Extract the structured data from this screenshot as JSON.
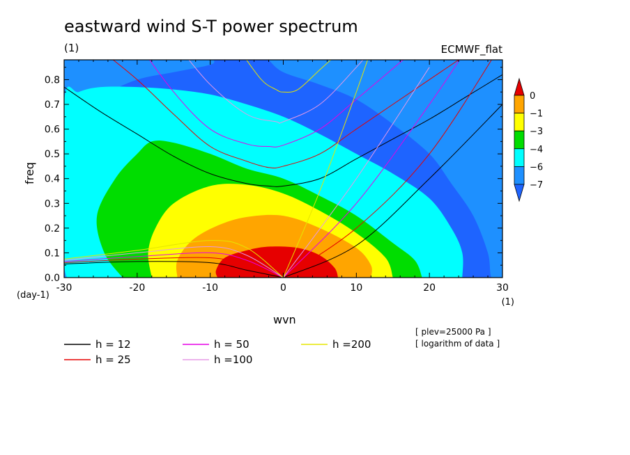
{
  "chart_data": {
    "type": "heatmap",
    "title": "eastward wind S-T power spectrum",
    "subtitle_left": "(1)",
    "subtitle_right": "ECMWF_flat",
    "xlabel": "wvn",
    "ylabel": "freq",
    "x_unit": "(1)",
    "y_unit": "(day-1)",
    "xlim": [
      -30,
      30
    ],
    "ylim": [
      0,
      0.88
    ],
    "x_ticks": [
      -30,
      -20,
      -10,
      0,
      10,
      20,
      30
    ],
    "x_tick_labels": [
      "-30",
      "-20",
      "-10",
      "0",
      "10",
      "20",
      "30"
    ],
    "y_ticks": [
      0.0,
      0.1,
      0.2,
      0.3,
      0.4,
      0.5,
      0.6,
      0.7,
      0.8
    ],
    "y_tick_labels": [
      "0.0",
      "0.1",
      "0.2",
      "0.3",
      "0.4",
      "0.5",
      "0.6",
      "0.7",
      "0.8"
    ],
    "colorbar": {
      "levels": [
        0,
        -1,
        -3,
        -4,
        -6,
        -7
      ],
      "labels": [
        "0",
        "−1",
        "−3",
        "−4",
        "−6",
        "−7"
      ],
      "colors": [
        "#e60000",
        "#ffa500",
        "#ffff00",
        "#00dd00",
        "#00ffff",
        "#1e90ff",
        "#1e64ff"
      ]
    },
    "contours": [
      {
        "level": "-1",
        "color": "#e60000",
        "points": [
          [
            -9,
            0
          ],
          [
            -9.2,
            0.03
          ],
          [
            -8,
            0.08
          ],
          [
            -5,
            0.11
          ],
          [
            -2,
            0.125
          ],
          [
            2,
            0.12
          ],
          [
            5,
            0.09
          ],
          [
            7,
            0.04
          ],
          [
            7.5,
            0
          ]
        ]
      },
      {
        "level": "-3",
        "color": "#ffa500",
        "points": [
          [
            -14.5,
            0
          ],
          [
            -14.5,
            0.07
          ],
          [
            -12.5,
            0.15
          ],
          [
            -9,
            0.21
          ],
          [
            -5,
            0.245
          ],
          [
            0,
            0.25
          ],
          [
            5,
            0.2
          ],
          [
            10,
            0.12
          ],
          [
            12,
            0.05
          ],
          [
            12,
            0
          ]
        ]
      },
      {
        "level": "-4",
        "color": "#ffff00",
        "points": [
          [
            -18,
            0
          ],
          [
            -18.5,
            0.1
          ],
          [
            -17.5,
            0.2
          ],
          [
            -15,
            0.3
          ],
          [
            -10,
            0.37
          ],
          [
            -5,
            0.375
          ],
          [
            0,
            0.34
          ],
          [
            5,
            0.27
          ],
          [
            10,
            0.18
          ],
          [
            14,
            0.08
          ],
          [
            15,
            0
          ]
        ]
      },
      {
        "level": "-6",
        "color": "#00dd00",
        "points": [
          [
            -22,
            0
          ],
          [
            -24.5,
            0.1
          ],
          [
            -25.5,
            0.25
          ],
          [
            -23,
            0.4
          ],
          [
            -20,
            0.5
          ],
          [
            -18,
            0.55
          ],
          [
            -15,
            0.545
          ],
          [
            -10,
            0.5
          ],
          [
            -5,
            0.44
          ],
          [
            0,
            0.4
          ],
          [
            5,
            0.33
          ],
          [
            10,
            0.25
          ],
          [
            15,
            0.14
          ],
          [
            18,
            0.07
          ],
          [
            19,
            0
          ]
        ]
      },
      {
        "level": "-7",
        "color": "#00ffff",
        "points": [
          [
            -27.5,
            0
          ],
          [
            -30,
            0.05
          ],
          [
            -30,
            0.71
          ],
          [
            -28,
            0.75
          ],
          [
            -25,
            0.77
          ],
          [
            -20,
            0.77
          ],
          [
            -15,
            0.76
          ],
          [
            -10,
            0.74
          ],
          [
            -5,
            0.7
          ],
          [
            0,
            0.65
          ],
          [
            5,
            0.58
          ],
          [
            10,
            0.5
          ],
          [
            15,
            0.42
          ],
          [
            20,
            0.32
          ],
          [
            23,
            0.2
          ],
          [
            24.5,
            0.1
          ],
          [
            24.5,
            0
          ]
        ]
      },
      {
        "level": "-8",
        "color": "#1e90ff",
        "points": [
          [
            -30,
            0.09
          ],
          [
            -28.5,
            0.04
          ],
          [
            -28,
            0
          ],
          [
            -30,
            0
          ]
        ]
      },
      {
        "level": "-8",
        "color": "#1e90ff",
        "points": [
          [
            -30,
            0.88
          ],
          [
            -30,
            0.7
          ],
          [
            -25,
            0.74
          ],
          [
            -20,
            0.8
          ],
          [
            -15,
            0.83
          ],
          [
            -10,
            0.86
          ],
          [
            -9.5,
            0.88
          ]
        ]
      },
      {
        "level": "-8",
        "color": "#1e90ff",
        "points": [
          [
            -2,
            0.88
          ],
          [
            0,
            0.83
          ],
          [
            5,
            0.78
          ],
          [
            10,
            0.72
          ],
          [
            15,
            0.62
          ],
          [
            20,
            0.5
          ],
          [
            23,
            0.38
          ],
          [
            26,
            0.25
          ],
          [
            28,
            0.1
          ],
          [
            28.5,
            0
          ],
          [
            30,
            0
          ],
          [
            30,
            0.88
          ]
        ]
      }
    ],
    "series": [
      {
        "name": "h = 12",
        "color": "#000000",
        "ew": [
          [
            -30,
            0.77
          ],
          [
            -25,
            0.67
          ],
          [
            -20,
            0.58
          ],
          [
            -15,
            0.49
          ],
          [
            -10,
            0.42
          ],
          [
            -5,
            0.38
          ],
          [
            -2,
            0.37
          ],
          [
            0,
            0.37
          ],
          [
            5,
            0.4
          ],
          [
            10,
            0.48
          ],
          [
            15,
            0.56
          ],
          [
            20,
            0.64
          ],
          [
            25,
            0.73
          ],
          [
            30,
            0.82
          ]
        ],
        "kw": [
          [
            0,
            0
          ],
          [
            10,
            0.13
          ],
          [
            20,
            0.4
          ],
          [
            30,
            0.7
          ]
        ],
        "rossby": [
          [
            -30,
            0.055
          ],
          [
            -20,
            0.065
          ],
          [
            -10,
            0.06
          ],
          [
            -5,
            0.03
          ],
          [
            0,
            0
          ]
        ]
      },
      {
        "name": "h = 25",
        "color": "#e60000",
        "ew": [
          [
            -25,
            0.92
          ],
          [
            -20,
            0.8
          ],
          [
            -15,
            0.66
          ],
          [
            -10,
            0.53
          ],
          [
            -5,
            0.47
          ],
          [
            -2,
            0.445
          ],
          [
            0,
            0.45
          ],
          [
            5,
            0.5
          ],
          [
            10,
            0.6
          ],
          [
            20,
            0.8
          ],
          [
            26,
            0.92
          ]
        ],
        "kw": [
          [
            0,
            0
          ],
          [
            10,
            0.2
          ],
          [
            20,
            0.5
          ],
          [
            30,
            0.95
          ]
        ],
        "rossby": [
          [
            -30,
            0.06
          ],
          [
            -20,
            0.075
          ],
          [
            -10,
            0.08
          ],
          [
            -5,
            0.05
          ],
          [
            0,
            0
          ]
        ]
      },
      {
        "name": "h = 50",
        "color": "#e600e6",
        "ew": [
          [
            -20,
            0.95
          ],
          [
            -15,
            0.75
          ],
          [
            -10,
            0.6
          ],
          [
            -5,
            0.54
          ],
          [
            -2,
            0.53
          ],
          [
            0,
            0.535
          ],
          [
            5,
            0.6
          ],
          [
            10,
            0.72
          ],
          [
            18,
            0.92
          ]
        ],
        "kw": [
          [
            0,
            0
          ],
          [
            10,
            0.3
          ],
          [
            20,
            0.7
          ],
          [
            25,
            0.92
          ]
        ],
        "rossby": [
          [
            -30,
            0.065
          ],
          [
            -20,
            0.085
          ],
          [
            -10,
            0.1
          ],
          [
            -5,
            0.07
          ],
          [
            0,
            0
          ]
        ]
      },
      {
        "name": "h =100",
        "color": "#e699e6",
        "ew": [
          [
            -14,
            0.92
          ],
          [
            -10,
            0.78
          ],
          [
            -5,
            0.66
          ],
          [
            -1,
            0.63
          ],
          [
            0,
            0.63
          ],
          [
            5,
            0.7
          ],
          [
            10,
            0.85
          ],
          [
            12,
            0.92
          ]
        ],
        "kw": [
          [
            0,
            0
          ],
          [
            10,
            0.4
          ],
          [
            20,
            0.85
          ]
        ],
        "rossby": [
          [
            -30,
            0.07
          ],
          [
            -20,
            0.1
          ],
          [
            -10,
            0.125
          ],
          [
            -5,
            0.09
          ],
          [
            0,
            0
          ]
        ]
      },
      {
        "name": "h =200",
        "color": "#e6e600",
        "ew": [
          [
            -6,
            0.92
          ],
          [
            -3,
            0.8
          ],
          [
            -1,
            0.76
          ],
          [
            0,
            0.75
          ],
          [
            2,
            0.76
          ],
          [
            5,
            0.84
          ],
          [
            8,
            0.92
          ]
        ],
        "kw": [
          [
            0,
            0
          ],
          [
            5,
            0.35
          ],
          [
            10,
            0.75
          ],
          [
            12,
            0.92
          ]
        ],
        "rossby": [
          [
            -30,
            0.075
          ],
          [
            -20,
            0.11
          ],
          [
            -10,
            0.15
          ],
          [
            -5,
            0.12
          ],
          [
            0,
            0
          ]
        ]
      }
    ],
    "annotations": [
      "[ plev=25000 Pa ]",
      "[ logarithm of data ]"
    ],
    "legend_position": "bottom"
  }
}
